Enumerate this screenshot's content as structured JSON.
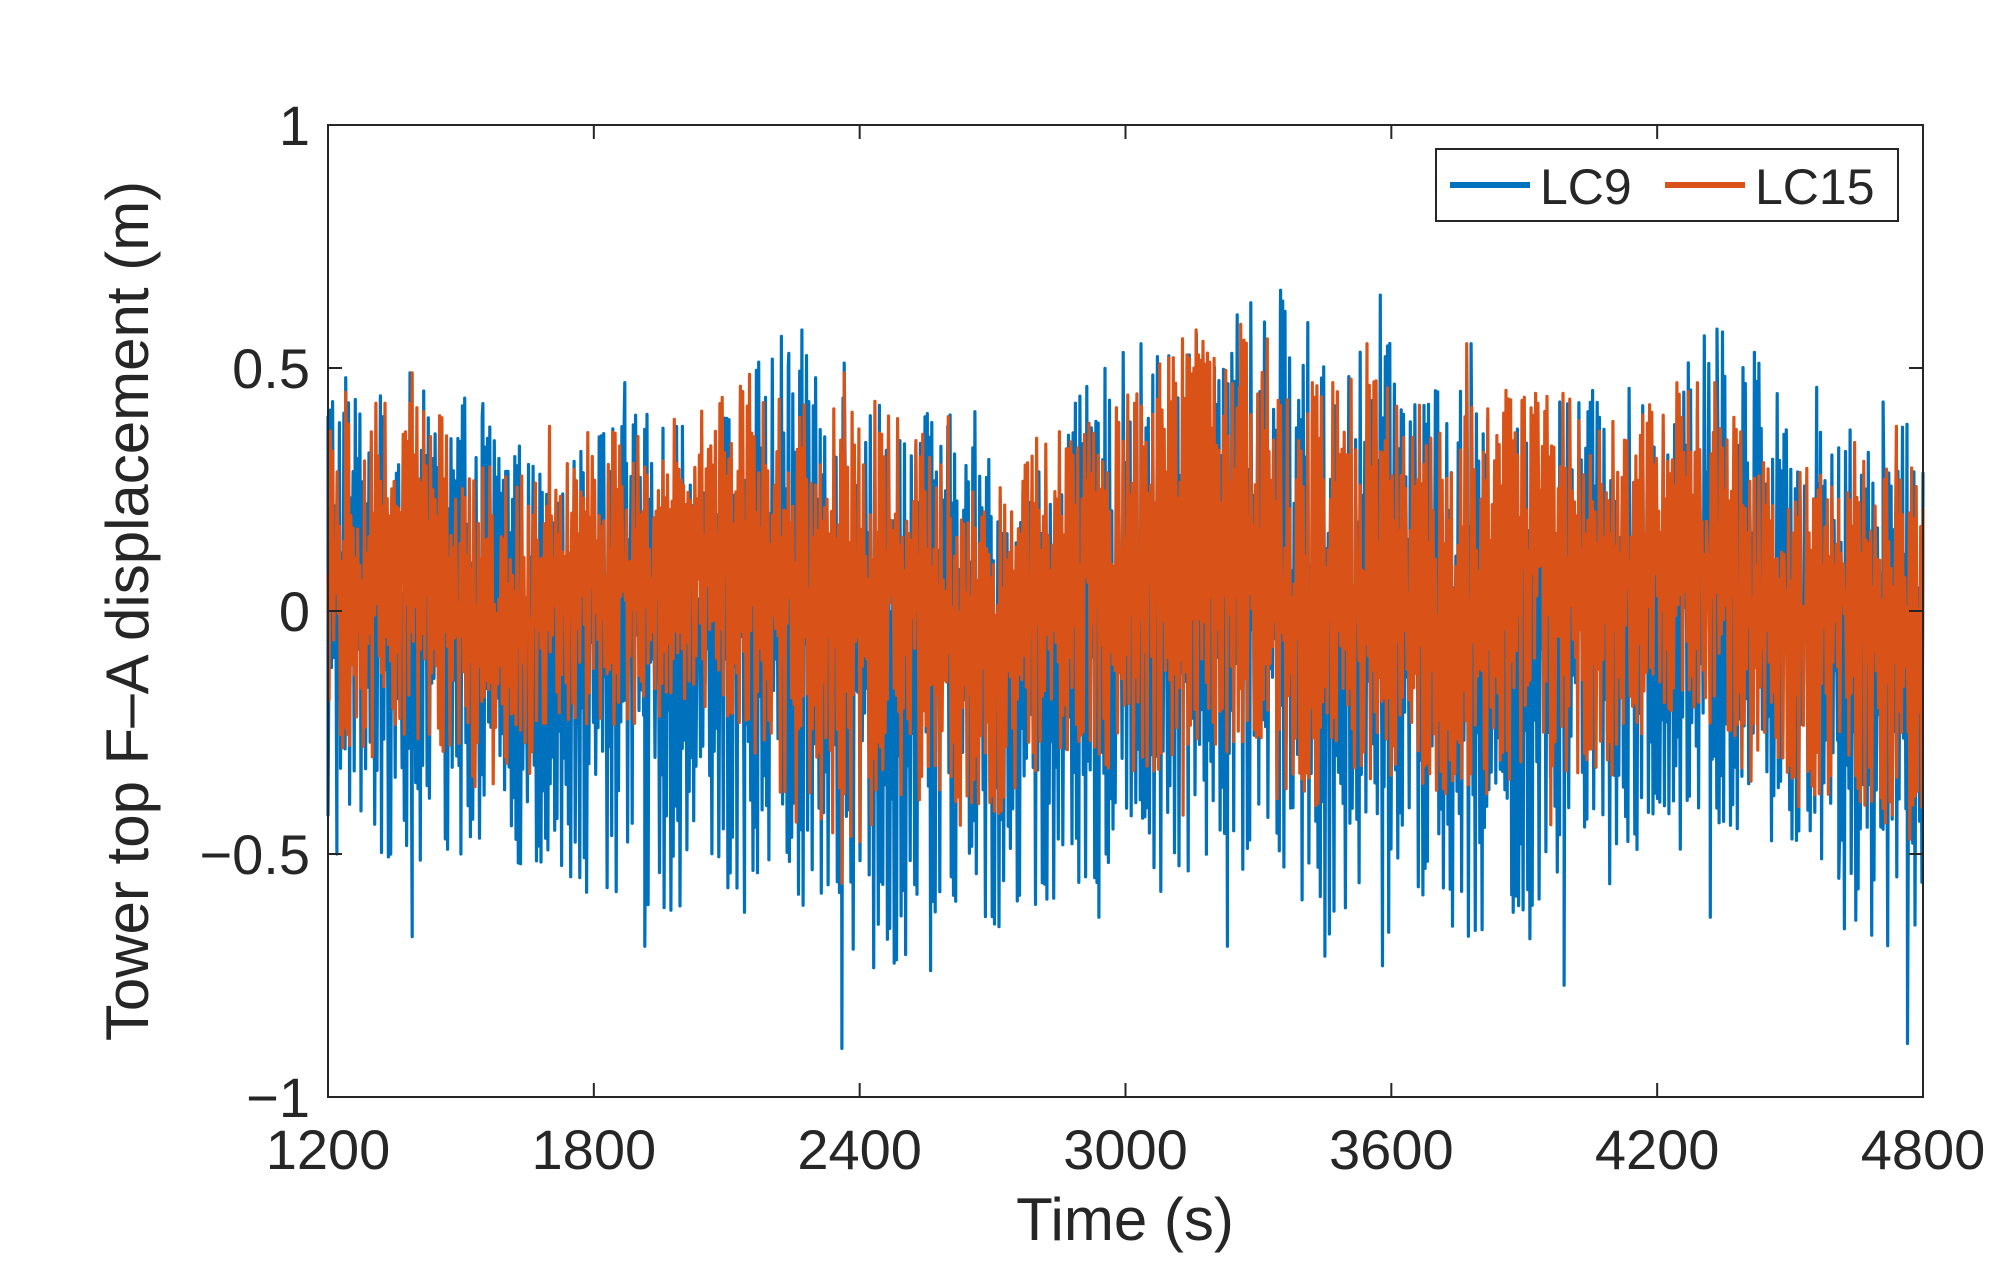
{
  "chart_data": {
    "type": "line",
    "title": "",
    "xlabel": "Time (s)",
    "ylabel": "Tower top F–A displacement (m)",
    "xlim": [
      1200,
      4800
    ],
    "ylim": [
      -1,
      1
    ],
    "x_ticks": [
      1200,
      1800,
      2400,
      3000,
      3600,
      4200,
      4800
    ],
    "x_tick_labels": [
      "1200",
      "1800",
      "2400",
      "3000",
      "3600",
      "4200",
      "4800"
    ],
    "y_ticks": [
      -1,
      -0.5,
      0,
      0.5,
      1
    ],
    "y_tick_labels": [
      "−1",
      "−0.5",
      "0",
      "0.5",
      "1"
    ],
    "grid": false,
    "legend_position": "top-right",
    "legend_orientation": "horizontal",
    "series": [
      {
        "name": "LC9",
        "color": "#0072BD",
        "approx_mean": 0.0,
        "approx_max": 0.65,
        "approx_min": -0.9,
        "peaks": [
          [
            1200,
            0.35
          ],
          [
            1240,
            0.48
          ],
          [
            1385,
            0.49
          ],
          [
            1548,
            0.4
          ],
          [
            1870,
            0.47
          ],
          [
            2000,
            0.38
          ],
          [
            2240,
            0.53
          ],
          [
            2365,
            0.51
          ],
          [
            2660,
            0.41
          ],
          [
            3035,
            0.55
          ],
          [
            3160,
            0.57
          ],
          [
            3240,
            0.53
          ],
          [
            3350,
            0.66
          ],
          [
            3575,
            0.65
          ],
          [
            3780,
            0.55
          ],
          [
            3980,
            0.43
          ],
          [
            4335,
            0.58
          ],
          [
            4560,
            0.46
          ],
          [
            4710,
            0.43
          ]
        ],
        "troughs": [
          [
            1200,
            -0.42
          ],
          [
            1220,
            -0.5
          ],
          [
            1390,
            -0.67
          ],
          [
            1500,
            -0.5
          ],
          [
            1915,
            -0.69
          ],
          [
            2140,
            -0.62
          ],
          [
            2360,
            -0.9
          ],
          [
            2560,
            -0.74
          ],
          [
            2940,
            -0.63
          ],
          [
            3230,
            -0.69
          ],
          [
            3450,
            -0.71
          ],
          [
            3580,
            -0.73
          ],
          [
            3875,
            -0.62
          ],
          [
            3990,
            -0.77
          ],
          [
            4320,
            -0.63
          ],
          [
            4610,
            -0.55
          ],
          [
            4765,
            -0.89
          ]
        ]
      },
      {
        "name": "LC15",
        "color": "#D95319",
        "approx_mean": 0.05,
        "approx_max": 0.59,
        "approx_min": -0.56,
        "peaks": [
          [
            1240,
            0.45
          ],
          [
            1390,
            0.49
          ],
          [
            1700,
            0.38
          ],
          [
            2135,
            0.44
          ],
          [
            2365,
            0.49
          ],
          [
            2600,
            0.4
          ],
          [
            3200,
            0.52
          ],
          [
            3260,
            0.59
          ],
          [
            3320,
            0.56
          ],
          [
            3545,
            0.55
          ],
          [
            3770,
            0.55
          ],
          [
            4100,
            0.39
          ],
          [
            4330,
            0.47
          ],
          [
            4740,
            0.38
          ]
        ],
        "troughs": [
          [
            1300,
            -0.3
          ],
          [
            1600,
            -0.3
          ],
          [
            2360,
            -0.56
          ],
          [
            2700,
            -0.38
          ],
          [
            3130,
            -0.42
          ],
          [
            3430,
            -0.4
          ],
          [
            3960,
            -0.44
          ],
          [
            4550,
            -0.36
          ],
          [
            4770,
            -0.47
          ]
        ]
      }
    ]
  }
}
